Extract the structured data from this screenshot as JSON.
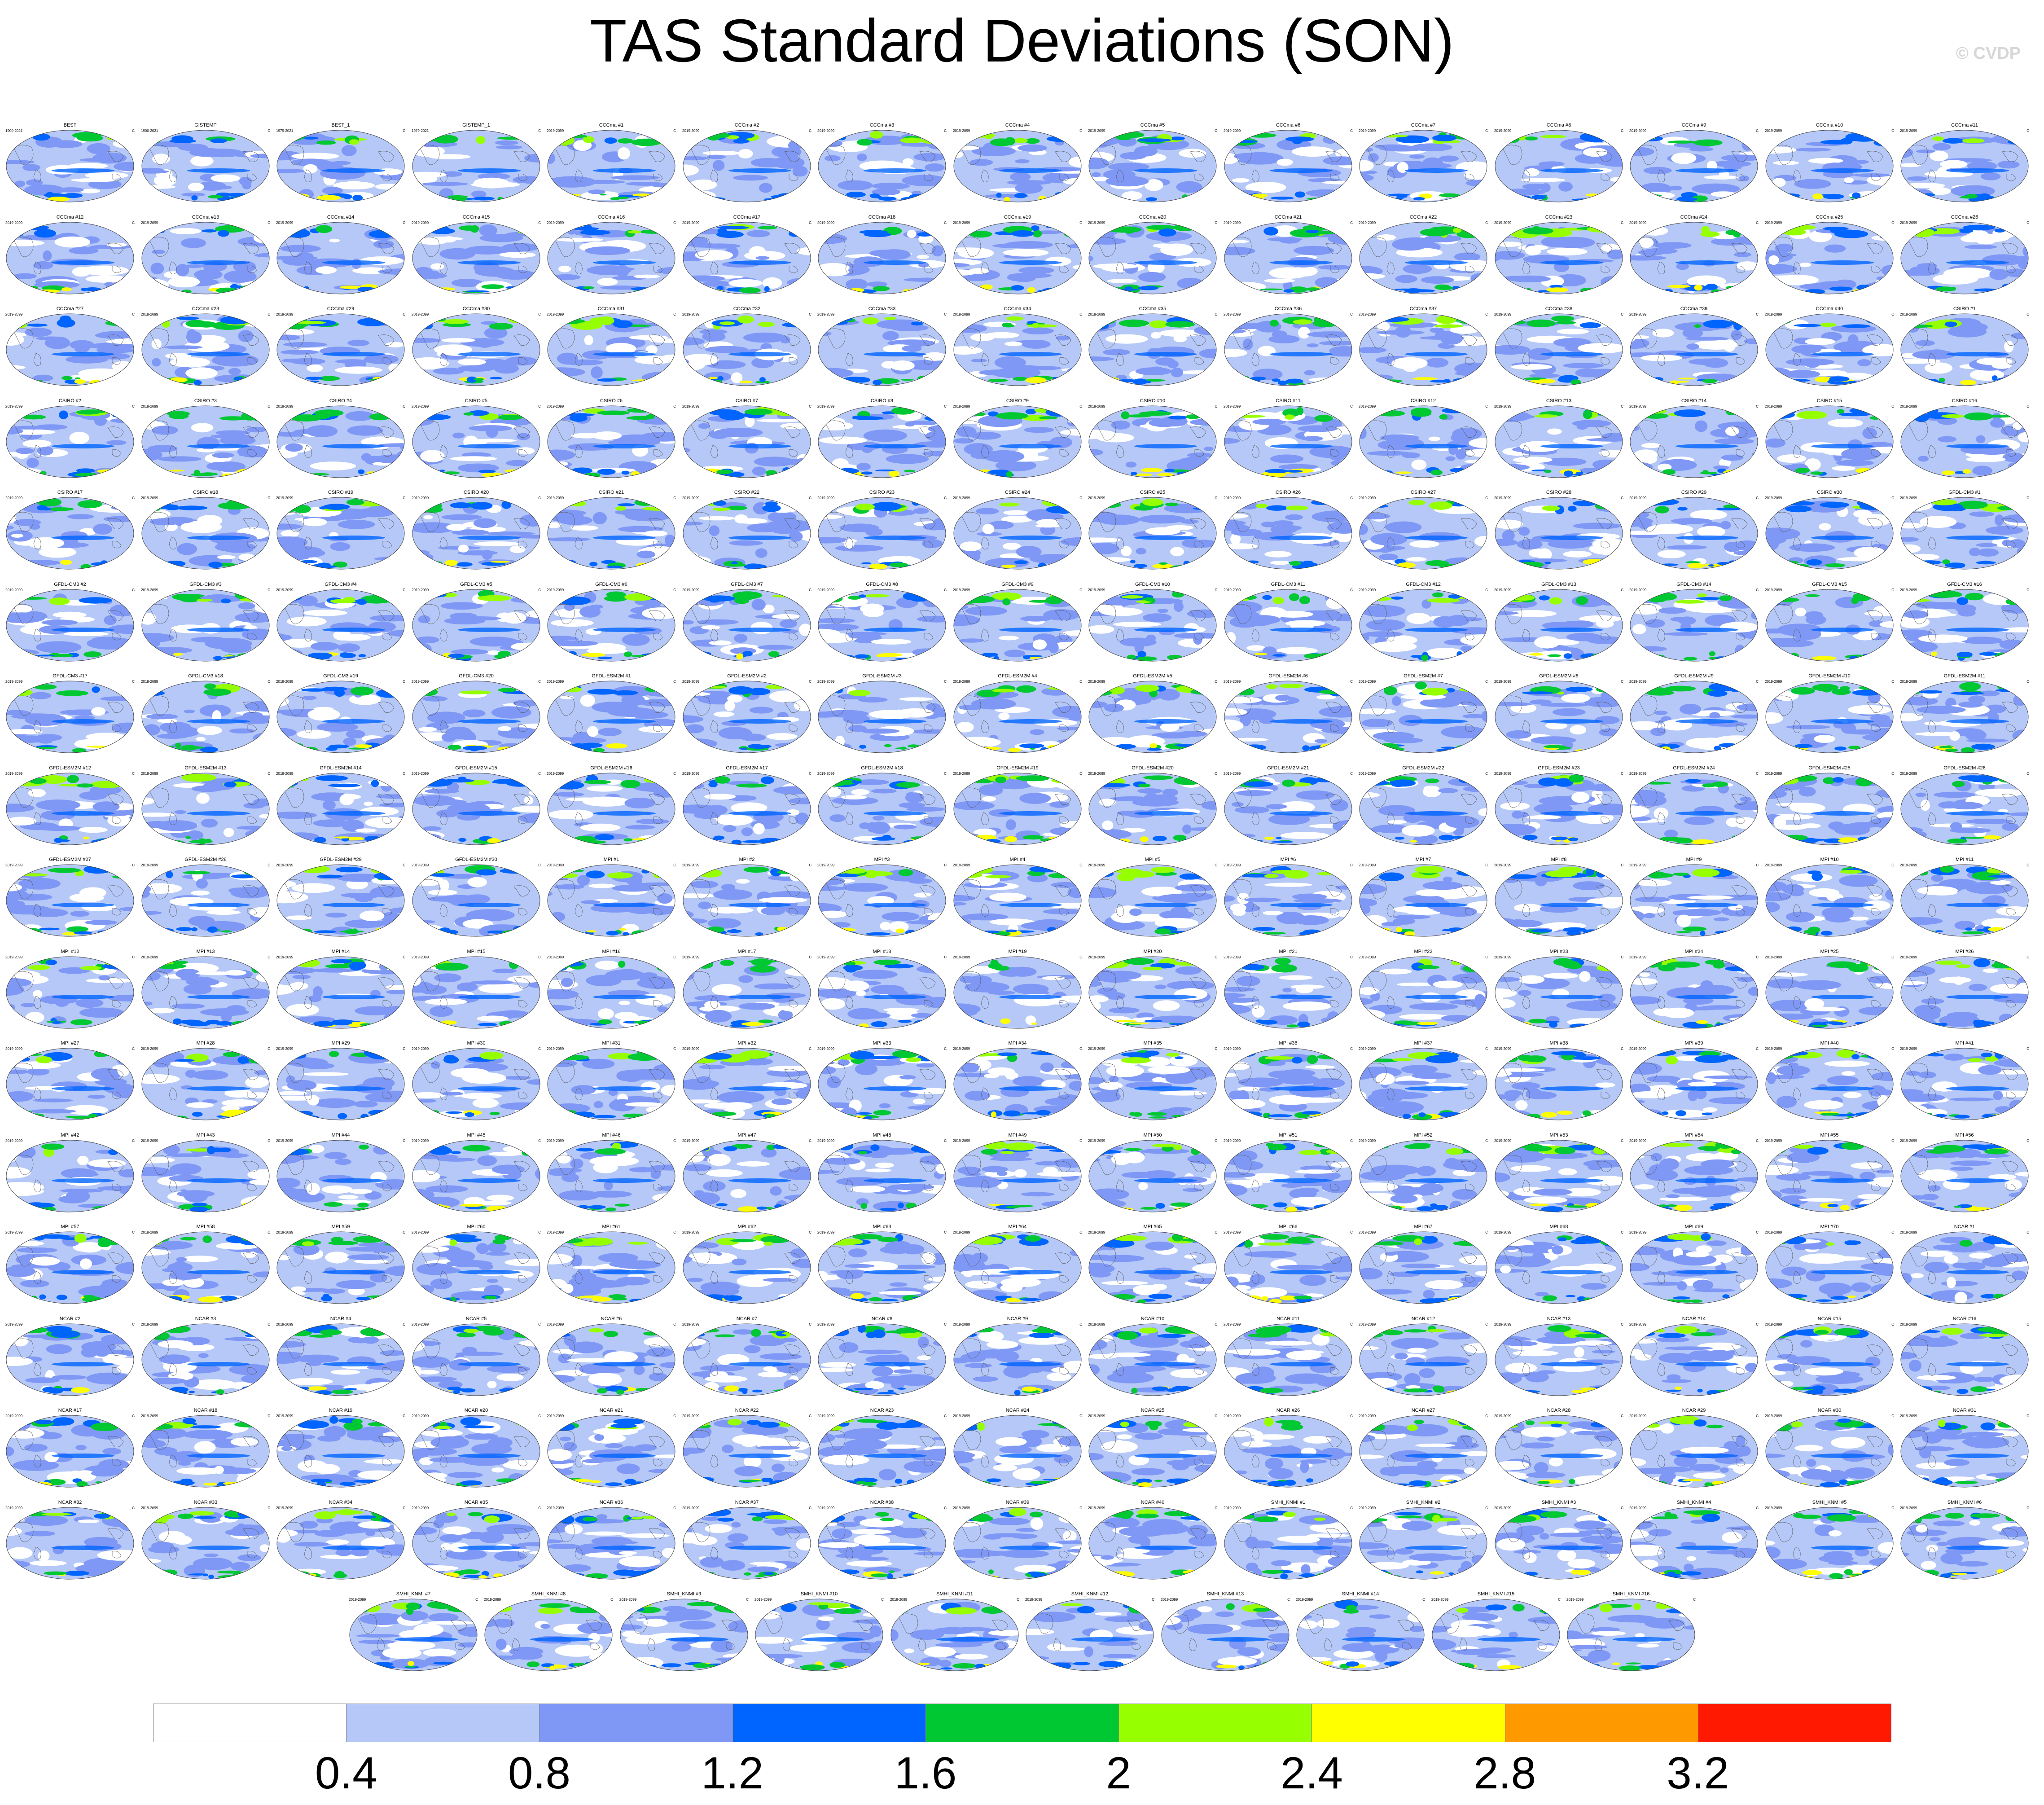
{
  "title": "TAS Standard Deviations (SON)",
  "watermark": "© CVDP",
  "units": "C",
  "obs_panels": [
    {
      "title": "BEST",
      "period": "1900-2021"
    },
    {
      "title": "GISTEMP",
      "period": "1900-2021"
    },
    {
      "title": "BEST_1",
      "period": "1979-2021"
    },
    {
      "title": "GISTEMP_1",
      "period": "1979-2021"
    }
  ],
  "model_period": "2019-2099",
  "model_groups": [
    {
      "name": "CCCma",
      "count": 40
    },
    {
      "name": "CSIRO",
      "count": 30
    },
    {
      "name": "GFDL-CM3",
      "count": 20
    },
    {
      "name": "GFDL-ESM2M",
      "count": 30
    },
    {
      "name": "MPI",
      "count": 70
    },
    {
      "name": "NCAR",
      "count": 40
    },
    {
      "name": "SMHI_KNMI",
      "count": 16
    }
  ],
  "colorbar": {
    "colors": [
      "#ffffff",
      "#b5c8f7",
      "#7f98f5",
      "#0064ff",
      "#00c832",
      "#96ff00",
      "#ffff00",
      "#ff9900",
      "#ff1900"
    ],
    "labels": [
      "0.4",
      "0.8",
      "1.2",
      "1.6",
      "2",
      "2.4",
      "2.8",
      "3.2"
    ]
  }
}
